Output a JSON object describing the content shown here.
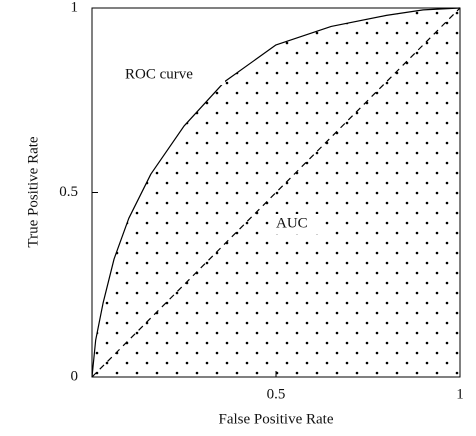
{
  "chart_data": {
    "type": "line",
    "xlabel": "False Positive Rate",
    "ylabel": "True Positive Rate",
    "xlim": [
      0,
      1
    ],
    "ylim": [
      0,
      1
    ],
    "xticks": [
      0.5,
      1
    ],
    "yticks": [
      0,
      0.5,
      1
    ],
    "grid": false,
    "series": [
      {
        "name": "ROC curve",
        "color": "#000000",
        "style": "solid",
        "x": [
          0,
          0.01,
          0.03,
          0.06,
          0.1,
          0.16,
          0.25,
          0.36,
          0.5,
          0.65,
          0.8,
          0.9,
          1
        ],
        "values": [
          0,
          0.1,
          0.2,
          0.32,
          0.43,
          0.55,
          0.68,
          0.8,
          0.9,
          0.95,
          0.98,
          0.995,
          1
        ]
      },
      {
        "name": "diagonal",
        "color": "#000000",
        "style": "dashed",
        "x": [
          0,
          1
        ],
        "values": [
          0,
          1
        ]
      }
    ],
    "annotations": [
      {
        "text": "ROC curve"
      },
      {
        "text": "AUC"
      }
    ]
  }
}
